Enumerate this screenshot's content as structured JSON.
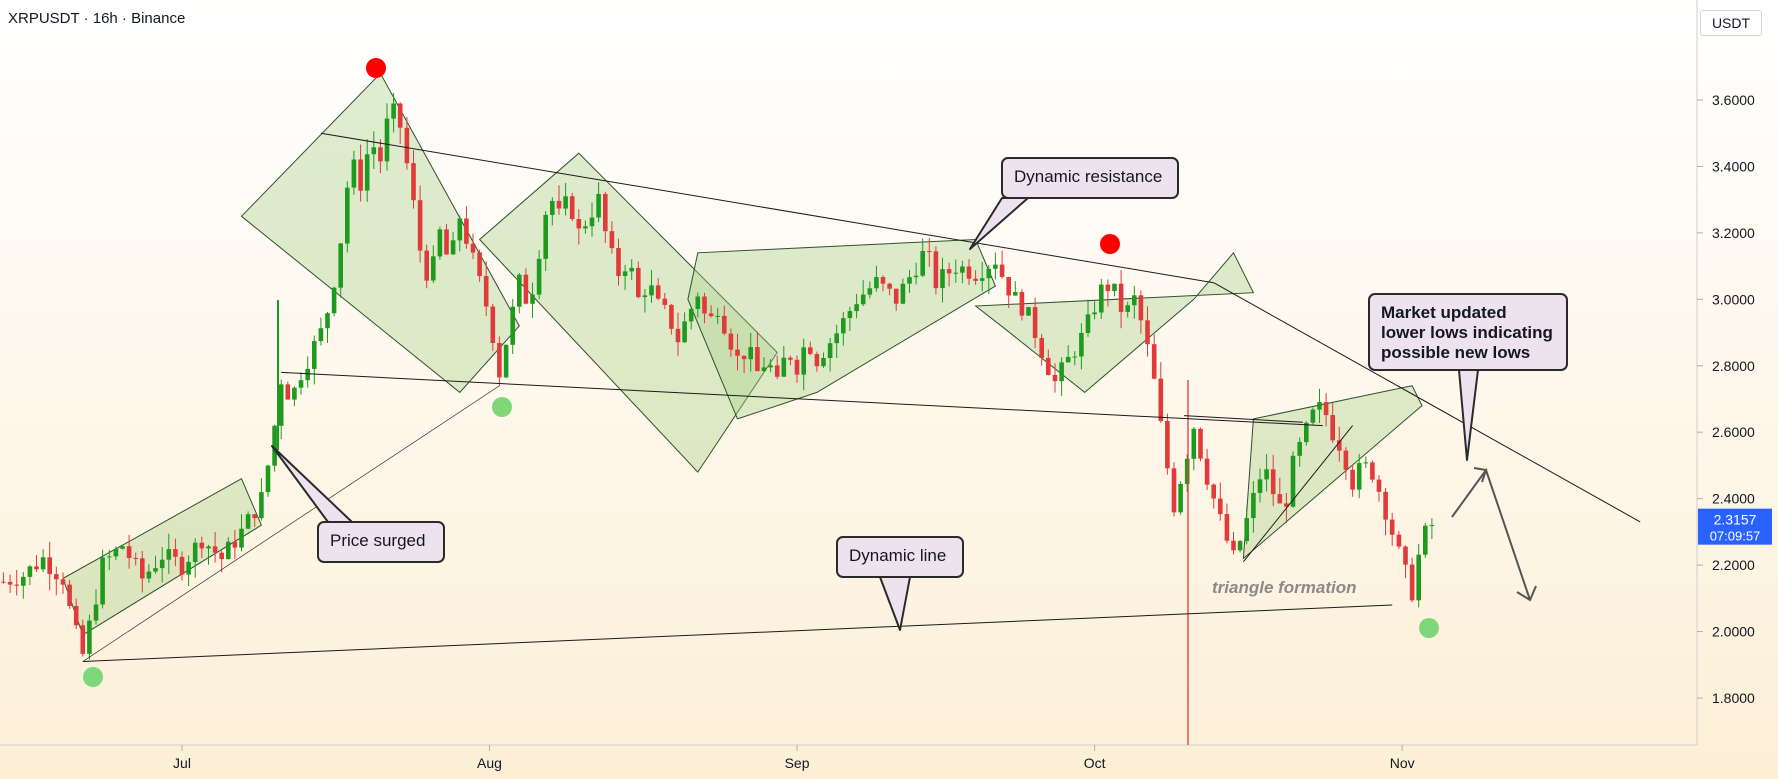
{
  "header": {
    "title": "XRPUSDT · 16h · Binance",
    "currency": "USDT"
  },
  "price_label": {
    "price": "2.3157",
    "countdown": "07:09:57",
    "bg": "#2962ff"
  },
  "colors": {
    "up": "#26a69a",
    "up_alt": "#1e9a1e",
    "down": "#e03a3a",
    "pattern_fill": "#a7cf8a",
    "red_dot": "#ff0000",
    "green_dot": "#7ed87a"
  },
  "chart_data": {
    "type": "candlestick",
    "symbol": "XRPUSDT",
    "timeframe": "16h",
    "exchange": "Binance",
    "y_ticks": [
      3.6,
      3.4,
      3.2,
      3.0,
      2.8,
      2.6,
      2.4,
      2.2,
      2.0,
      1.8
    ],
    "y_tick_labels": [
      "3.6000",
      "3.4000",
      "3.2000",
      "3.0000",
      "2.8000",
      "2.6000",
      "2.4000",
      "2.2000",
      "2.0000",
      "1.8000"
    ],
    "ylim": [
      1.66,
      3.83
    ],
    "x_ticks": [
      {
        "label": "Jul",
        "day": 0
      },
      {
        "label": "Aug",
        "day": 31
      },
      {
        "label": "Sep",
        "day": 62
      },
      {
        "label": "Oct",
        "day": 92
      },
      {
        "label": "Nov",
        "day": 123
      }
    ],
    "current_price": 2.3157,
    "path": [
      [
        -18,
        2.15
      ],
      [
        -16,
        2.17
      ],
      [
        -14,
        2.22
      ],
      [
        -12,
        2.16
      ],
      [
        -11,
        2.02
      ],
      [
        -10,
        1.93
      ],
      [
        -9,
        2.06
      ],
      [
        -8,
        2.2
      ],
      [
        -6,
        2.26
      ],
      [
        -4,
        2.16
      ],
      [
        -2,
        2.23
      ],
      [
        0,
        2.2
      ],
      [
        2,
        2.28
      ],
      [
        4,
        2.22
      ],
      [
        6,
        2.3
      ],
      [
        8,
        2.4
      ],
      [
        9,
        2.55
      ],
      [
        10,
        2.76
      ],
      [
        11,
        2.7
      ],
      [
        12,
        2.78
      ],
      [
        14,
        2.9
      ],
      [
        15,
        3.0
      ],
      [
        16,
        3.18
      ],
      [
        17,
        3.42
      ],
      [
        18,
        3.35
      ],
      [
        19,
        3.48
      ],
      [
        20,
        3.42
      ],
      [
        21,
        3.58
      ],
      [
        22,
        3.52
      ],
      [
        23,
        3.35
      ],
      [
        24,
        3.15
      ],
      [
        25,
        3.05
      ],
      [
        26,
        3.2
      ],
      [
        27,
        3.1
      ],
      [
        28,
        3.25
      ],
      [
        29,
        3.15
      ],
      [
        30,
        3.05
      ],
      [
        31,
        2.95
      ],
      [
        32,
        2.78
      ],
      [
        33,
        2.92
      ],
      [
        34,
        3.05
      ],
      [
        35,
        2.98
      ],
      [
        36,
        3.15
      ],
      [
        37,
        3.32
      ],
      [
        38,
        3.25
      ],
      [
        39,
        3.3
      ],
      [
        40,
        3.2
      ],
      [
        41,
        3.25
      ],
      [
        42,
        3.3
      ],
      [
        43,
        3.15
      ],
      [
        44,
        3.08
      ],
      [
        45,
        3.12
      ],
      [
        46,
        3.0
      ],
      [
        47,
        3.05
      ],
      [
        48,
        2.98
      ],
      [
        49,
        2.95
      ],
      [
        50,
        2.88
      ],
      [
        51,
        2.95
      ],
      [
        52,
        3.02
      ],
      [
        53,
        2.92
      ],
      [
        54,
        2.98
      ],
      [
        55,
        2.9
      ],
      [
        56,
        2.82
      ],
      [
        57,
        2.85
      ],
      [
        58,
        2.78
      ],
      [
        59,
        2.82
      ],
      [
        60,
        2.74
      ],
      [
        61,
        2.85
      ],
      [
        62,
        2.8
      ],
      [
        63,
        2.88
      ],
      [
        64,
        2.82
      ],
      [
        66,
        2.9
      ],
      [
        68,
        3.0
      ],
      [
        70,
        3.05
      ],
      [
        72,
        3.0
      ],
      [
        74,
        3.1
      ],
      [
        75,
        3.15
      ],
      [
        76,
        3.05
      ],
      [
        78,
        3.1
      ],
      [
        80,
        3.08
      ],
      [
        82,
        3.12
      ],
      [
        83,
        3.05
      ],
      [
        84,
        3.0
      ],
      [
        85,
        2.97
      ],
      [
        86,
        2.9
      ],
      [
        87,
        2.82
      ],
      [
        88,
        2.75
      ],
      [
        89,
        2.8
      ],
      [
        90,
        2.85
      ],
      [
        91,
        2.9
      ],
      [
        92,
        2.98
      ],
      [
        93,
        3.05
      ],
      [
        94,
        3.02
      ],
      [
        95,
        2.95
      ],
      [
        96,
        3.0
      ],
      [
        97,
        2.9
      ],
      [
        98,
        2.75
      ],
      [
        99,
        2.55
      ],
      [
        100,
        2.38
      ],
      [
        101,
        2.5
      ],
      [
        102,
        2.62
      ],
      [
        103,
        2.5
      ],
      [
        104,
        2.4
      ],
      [
        105,
        2.3
      ],
      [
        106,
        2.22
      ],
      [
        107,
        2.3
      ],
      [
        108,
        2.4
      ],
      [
        109,
        2.5
      ],
      [
        110,
        2.42
      ],
      [
        111,
        2.35
      ],
      [
        112,
        2.5
      ],
      [
        113,
        2.58
      ],
      [
        114,
        2.65
      ],
      [
        115,
        2.68
      ],
      [
        116,
        2.6
      ],
      [
        117,
        2.55
      ],
      [
        118,
        2.45
      ],
      [
        119,
        2.5
      ],
      [
        120,
        2.48
      ],
      [
        121,
        2.4
      ],
      [
        122,
        2.3
      ],
      [
        123,
        2.2
      ],
      [
        124,
        2.12
      ],
      [
        125,
        2.28
      ],
      [
        126,
        2.32
      ]
    ],
    "annotations": [
      "Price surged",
      "Dynamic line",
      "Dynamic resistance",
      "Market updated lower lows indicating possible new lows",
      "triangle formation"
    ]
  },
  "callouts": {
    "price_surged": "Price surged",
    "dynamic_line": "Dynamic line",
    "dynamic_resistance": "Dynamic resistance",
    "market_updated": [
      "Market updated",
      "lower lows indicating",
      "possible new lows"
    ],
    "triangle_formation": "triangle formation"
  }
}
